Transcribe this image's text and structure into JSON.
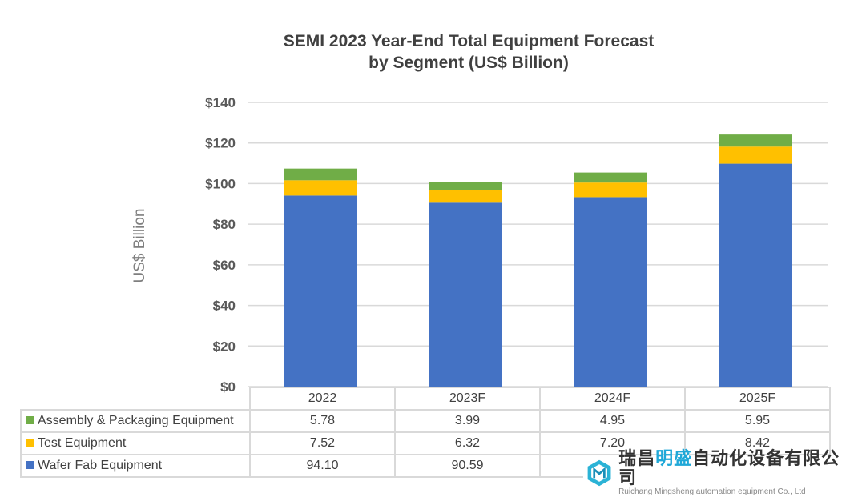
{
  "chart_data": {
    "type": "bar",
    "stacked": true,
    "title": "SEMI 2023 Year-End Total Equipment Forecast by Segment (US$ Billion)",
    "title_lines": [
      "SEMI 2023 Year-End Total Equipment Forecast",
      "by Segment (US$ Billion)"
    ],
    "ylabel": "US$ Billion",
    "xlabel": "",
    "ylim": [
      0,
      140
    ],
    "yticks": [
      "$0",
      "$20",
      "$40",
      "$60",
      "$80",
      "$100",
      "$120",
      "$140"
    ],
    "grid": true,
    "legend": "data-table-bottom",
    "categories": [
      "2022",
      "2023F",
      "2024F",
      "2025F"
    ],
    "series": [
      {
        "name": "Assembly & Packaging Equipment",
        "color": "#70AD47",
        "values": [
          5.78,
          3.99,
          4.95,
          5.95
        ],
        "labels": [
          "5.78",
          "3.99",
          "4.95",
          "5.95"
        ]
      },
      {
        "name": "Test Equipment",
        "color": "#FFC000",
        "values": [
          7.52,
          6.32,
          7.2,
          8.42
        ],
        "labels": [
          "7.52",
          "6.32",
          "7.20",
          "8.42"
        ]
      },
      {
        "name": "Wafer Fab Equipment",
        "color": "#4472C4",
        "values": [
          94.1,
          90.59,
          93.3,
          109.8
        ],
        "labels": [
          "94.10",
          "90.59",
          "",
          ""
        ]
      }
    ]
  },
  "watermark": {
    "cn_a": "瑞昌",
    "cn_b": "明盛",
    "cn_c": "自动化设备有限公司",
    "en": "Ruichang Mingsheng automation equipment Co., Ltd"
  }
}
